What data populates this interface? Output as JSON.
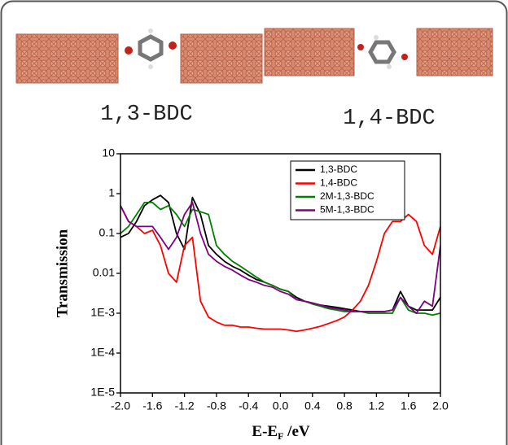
{
  "panel_labels": [
    "1,3-BDC",
    "1,4-BDC"
  ],
  "chart_data": {
    "type": "line",
    "y_label": "Transmission",
    "x_label": {
      "main": "E-E",
      "subscript": "F",
      "unit": " /eV"
    },
    "log_y": true,
    "legend": "upper right",
    "xlim": [
      -2,
      2
    ],
    "xticks": [
      {
        "value": -2,
        "label": "-2.0"
      },
      -1.6,
      -1.2,
      -0.8,
      -0.4,
      {
        "value": 0,
        "label": "0.0"
      },
      0.4,
      0.8,
      1.2,
      1.6,
      {
        "value": 2,
        "label": "2.0"
      }
    ],
    "ylim": [
      1e-05,
      10
    ],
    "yticks": [
      {
        "value": 1e-05,
        "label": "1E-5"
      },
      {
        "value": 0.0001,
        "label": "1E-4"
      },
      {
        "value": 0.001,
        "label": "1E-3"
      },
      0.01,
      0.1,
      1,
      10
    ],
    "x": [
      -2,
      -1.9,
      -1.8,
      -1.7,
      -1.6,
      -1.5,
      -1.4,
      -1.3,
      -1.2,
      -1.1,
      -1,
      -0.9,
      -0.8,
      -0.7,
      -0.6,
      -0.5,
      -0.4,
      -0.3,
      -0.2,
      -0.1,
      0,
      0.1,
      0.2,
      0.3,
      0.4,
      0.5,
      0.6,
      0.7,
      0.8,
      0.9,
      1,
      1.1,
      1.2,
      1.3,
      1.4,
      1.5,
      1.6,
      1.7,
      1.8,
      1.9,
      2
    ],
    "series": [
      {
        "name": "1,3-BDC",
        "color": "#000000",
        "values": [
          0.08,
          0.1,
          0.2,
          0.5,
          0.7,
          0.9,
          0.6,
          0.1,
          0.04,
          0.8,
          0.3,
          0.05,
          0.03,
          0.02,
          0.015,
          0.012,
          0.009,
          0.007,
          0.006,
          0.005,
          0.004,
          0.0035,
          0.0025,
          0.002,
          0.0018,
          0.0016,
          0.0015,
          0.0014,
          0.0013,
          0.0012,
          0.0011,
          0.0011,
          0.0011,
          0.0011,
          0.0012,
          0.0035,
          0.0015,
          0.0012,
          0.0012,
          0.0012,
          0.0025
        ]
      },
      {
        "name": "1,4-BDC",
        "color": "#ff0000",
        "values": [
          0.5,
          0.2,
          0.15,
          0.1,
          0.12,
          0.05,
          0.01,
          0.006,
          0.05,
          0.08,
          0.002,
          0.0008,
          0.0006,
          0.0005,
          0.0005,
          0.00045,
          0.00045,
          0.00042,
          0.0004,
          0.0004,
          0.0004,
          0.00038,
          0.00035,
          0.00038,
          0.00042,
          0.00047,
          0.00055,
          0.00065,
          0.0008,
          0.0012,
          0.002,
          0.005,
          0.02,
          0.1,
          0.2,
          0.2,
          0.3,
          0.2,
          0.05,
          0.03,
          0.15
        ]
      },
      {
        "name": "2M-1,3-BDC",
        "color": "#008000",
        "values": [
          0.1,
          0.15,
          0.3,
          0.6,
          0.6,
          0.4,
          0.5,
          0.3,
          0.15,
          0.4,
          0.35,
          0.3,
          0.05,
          0.03,
          0.02,
          0.015,
          0.011,
          0.008,
          0.006,
          0.005,
          0.004,
          0.0035,
          0.0022,
          0.002,
          0.0017,
          0.0015,
          0.0013,
          0.0012,
          0.0011,
          0.0011,
          0.0011,
          0.001,
          0.001,
          0.001,
          0.001,
          0.0025,
          0.0012,
          0.001,
          0.001,
          0.0009,
          0.001
        ]
      },
      {
        "name": "5M-1,3-BDC",
        "color": "#800080",
        "values": [
          0.5,
          0.2,
          0.15,
          0.15,
          0.15,
          0.08,
          0.04,
          0.08,
          0.3,
          0.6,
          0.1,
          0.03,
          0.02,
          0.015,
          0.012,
          0.009,
          0.007,
          0.006,
          0.005,
          0.0045,
          0.0035,
          0.003,
          0.0022,
          0.002,
          0.0018,
          0.0016,
          0.0014,
          0.0013,
          0.0012,
          0.0011,
          0.0011,
          0.0011,
          0.0011,
          0.0011,
          0.0012,
          0.0025,
          0.0015,
          0.001,
          0.002,
          0.0015,
          0.05
        ]
      }
    ]
  }
}
